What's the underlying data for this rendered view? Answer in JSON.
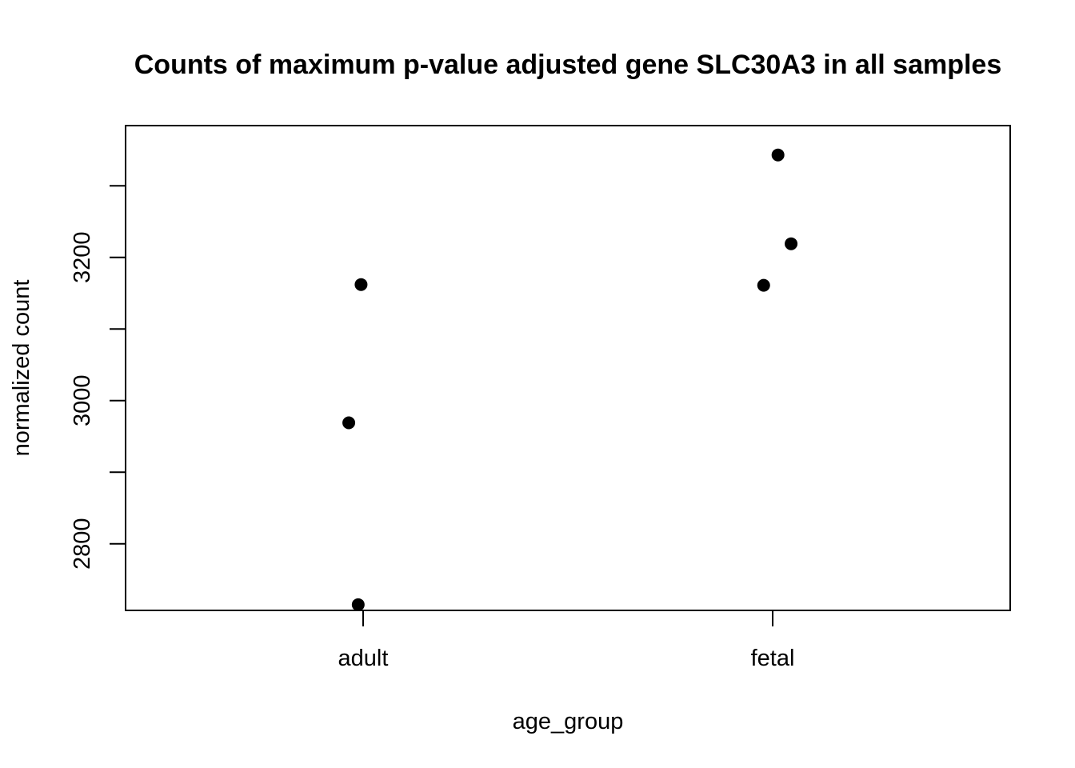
{
  "chart_data": {
    "type": "scatter",
    "title": "Counts of maximum p-value adjusted gene SLC30A3 in all samples",
    "xlabel": "age_group",
    "ylabel": "normalized count",
    "categories": [
      "adult",
      "fetal"
    ],
    "y_ticks": [
      2800,
      3000,
      3200
    ],
    "y_minor_ticks": [
      2900,
      3100,
      3300
    ],
    "ylim": [
      2707,
      3384
    ],
    "grid": false,
    "legend": "none",
    "point_color": "#000000",
    "points": [
      {
        "category": "adult",
        "jitter": -0.035,
        "y": 2969
      },
      {
        "category": "adult",
        "jitter": -0.005,
        "y": 3162
      },
      {
        "category": "adult",
        "jitter": -0.012,
        "y": 2715
      },
      {
        "category": "fetal",
        "jitter": -0.022,
        "y": 3161
      },
      {
        "category": "fetal",
        "jitter": 0.013,
        "y": 3343
      },
      {
        "category": "fetal",
        "jitter": 0.045,
        "y": 3219
      }
    ]
  }
}
